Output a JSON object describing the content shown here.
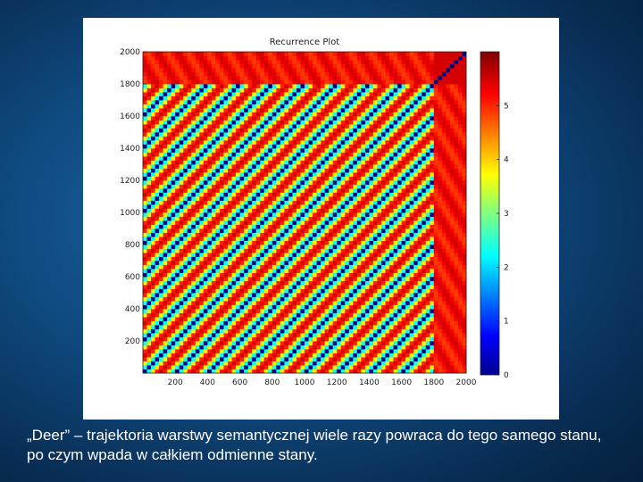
{
  "caption": "„Deer” – trajektoria warstwy semantycznej wiele razy powraca do tego samego stanu, po czym wpada w całkiem odmienne stany.",
  "chart_data": {
    "type": "heatmap",
    "title": "Recurrence Plot",
    "xlabel": "",
    "ylabel": "",
    "xlim": [
      0,
      2000
    ],
    "ylim": [
      0,
      2000
    ],
    "x_ticks": [
      200,
      400,
      600,
      800,
      1000,
      1200,
      1400,
      1600,
      1800,
      2000
    ],
    "x_tick_labels": [
      "200",
      "400",
      "600",
      "800",
      "1000",
      "1200",
      "1400",
      "1600",
      "1800",
      "2000"
    ],
    "y_ticks": [
      200,
      400,
      600,
      800,
      1000,
      1200,
      1400,
      1600,
      1800,
      2000
    ],
    "y_tick_labels": [
      "200",
      "400",
      "600",
      "800",
      "1000",
      "1200",
      "1400",
      "1600",
      "1800",
      "2000"
    ],
    "colorbar": {
      "min": 0,
      "max": 6,
      "ticks": [
        0,
        1,
        2,
        3,
        4,
        5
      ],
      "tick_labels": [
        "0",
        "1",
        "2",
        "3",
        "4",
        "5"
      ],
      "colormap": "jet"
    },
    "pattern": {
      "period": 200,
      "regime_change_at": 1800,
      "description_values": {
        "recurrent_distance": 0,
        "between_states_distance": 5.5,
        "new_regime_distance": 5.2
      }
    },
    "colors": {
      "low": "#00008f",
      "high": "#800000"
    }
  }
}
